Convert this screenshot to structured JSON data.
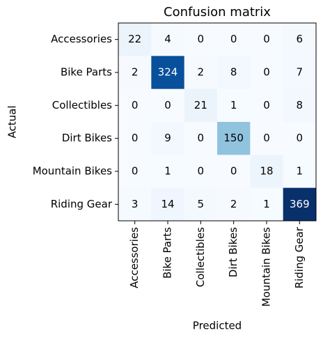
{
  "chart_data": {
    "type": "heatmap",
    "title": "Confusion matrix",
    "xlabel": "Predicted",
    "ylabel": "Actual",
    "colormap": "Blues",
    "x_categories": [
      "Accessories",
      "Bike Parts",
      "Collectibles",
      "Dirt Bikes",
      "Mountain Bikes",
      "Riding Gear"
    ],
    "y_categories": [
      "Accessories",
      "Bike Parts",
      "Collectibles",
      "Dirt Bikes",
      "Mountain Bikes",
      "Riding Gear"
    ],
    "values": [
      [
        22,
        4,
        0,
        0,
        0,
        6
      ],
      [
        2,
        324,
        2,
        8,
        0,
        7
      ],
      [
        0,
        0,
        21,
        1,
        0,
        8
      ],
      [
        0,
        9,
        0,
        150,
        0,
        0
      ],
      [
        0,
        1,
        0,
        0,
        18,
        1
      ],
      [
        3,
        14,
        5,
        2,
        1,
        369
      ]
    ]
  }
}
